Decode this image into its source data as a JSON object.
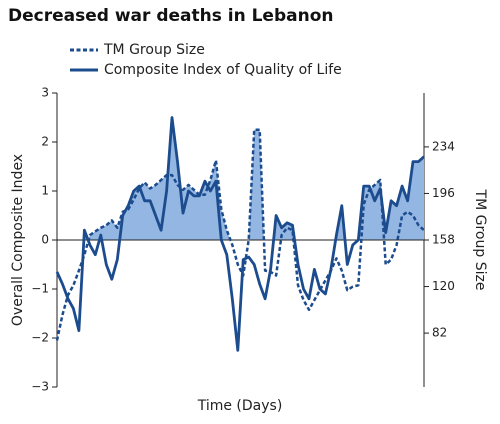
{
  "chart_data": {
    "type": "line",
    "title": "Decreased war deaths in Lebanon",
    "xlabel": "Time (Days)",
    "ylabel": "Overall Composite Index",
    "y2label": "TM Group Size",
    "ylim": [
      -3,
      3
    ],
    "yticks": [
      {
        "value": 3,
        "label": "3"
      },
      {
        "value": 2,
        "label": "2"
      },
      {
        "value": 1,
        "label": "1"
      },
      {
        "value": 0,
        "label": "0"
      },
      {
        "value": -1,
        "label": "−1"
      },
      {
        "value": -2,
        "label": "−2"
      },
      {
        "value": -3,
        "label": "−3"
      }
    ],
    "y2lim": [
      38,
      278
    ],
    "y2ticks": [
      82,
      120,
      158,
      196,
      234
    ],
    "fill_color": "#93b6e2",
    "legend": "top-left",
    "series": [
      {
        "name": "TM Group Size",
        "color": "#1c4c8e",
        "dash": true,
        "axis": "y2",
        "values": [
          76,
          97,
          113,
          121,
          133,
          146,
          162,
          165,
          168,
          170,
          174,
          168,
          181,
          183,
          191,
          200,
          205,
          200,
          203,
          207,
          211,
          211,
          203,
          199,
          203,
          199,
          195,
          195,
          207,
          223,
          183,
          166,
          154,
          138,
          129,
          158,
          248,
          248,
          133,
          132,
          129,
          162,
          168,
          166,
          121,
          109,
          101,
          109,
          117,
          125,
          133,
          143,
          133,
          117,
          120,
          121,
          187,
          199,
          203,
          207,
          138,
          142,
          154,
          178,
          181,
          178,
          170,
          166
        ]
      },
      {
        "name": "Composite Index of Quality of Life",
        "color": "#1c4c8e",
        "dash": false,
        "axis": "y",
        "values": [
          -0.65,
          -0.9,
          -1.2,
          -1.4,
          -1.85,
          0.2,
          -0.1,
          -0.3,
          0.1,
          -0.5,
          -0.8,
          -0.4,
          0.5,
          0.7,
          1.0,
          1.1,
          0.8,
          0.8,
          0.5,
          0.2,
          1.0,
          2.5,
          1.6,
          0.55,
          1.0,
          0.9,
          0.9,
          1.2,
          1.0,
          1.2,
          0,
          -0.3,
          -1.2,
          -2.25,
          -0.4,
          -0.35,
          -0.5,
          -0.9,
          -1.2,
          -0.6,
          0.5,
          0.25,
          0.35,
          0.3,
          -0.5,
          -1.0,
          -1.2,
          -0.6,
          -1.0,
          -1.1,
          -0.6,
          0.1,
          0.7,
          -0.5,
          -0.1,
          0,
          1.1,
          1.1,
          0.8,
          1.05,
          0.15,
          0.8,
          0.7,
          1.1,
          0.8,
          1.6,
          1.6,
          1.7
        ]
      }
    ]
  }
}
